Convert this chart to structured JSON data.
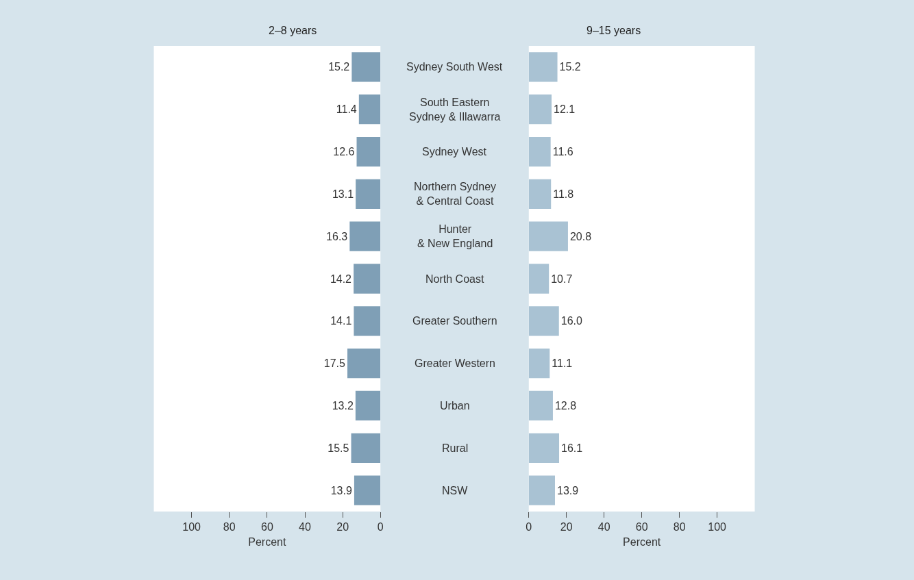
{
  "chart_data": [
    {
      "type": "bar",
      "orientation": "horizontal",
      "title": "2–8 years",
      "xlabel": "Percent",
      "categories": [
        "Sydney South West",
        "South Eastern Sydney & Illawarra",
        "Sydney West",
        "Northern Sydney & Central Coast",
        "Hunter & New England",
        "North Coast",
        "Greater Southern",
        "Greater Western",
        "Urban",
        "Rural",
        "NSW"
      ],
      "values": [
        15.2,
        11.4,
        12.6,
        13.1,
        16.3,
        14.2,
        14.1,
        17.5,
        13.2,
        15.5,
        13.9
      ],
      "value_labels": [
        "15.2",
        "11.4",
        "12.6",
        "13.1",
        "16.3",
        "14.2",
        "14.1",
        "17.5",
        "13.2",
        "15.5",
        "13.9"
      ],
      "color": "#7f9fb6",
      "xlim": [
        120,
        0
      ],
      "xticks": [
        100,
        80,
        60,
        40,
        20,
        0
      ],
      "legend": false
    },
    {
      "type": "bar",
      "orientation": "horizontal",
      "title": "9–15 years",
      "xlabel": "Percent",
      "categories": [
        "Sydney South West",
        "South Eastern Sydney & Illawarra",
        "Sydney West",
        "Northern Sydney & Central Coast",
        "Hunter & New England",
        "North Coast",
        "Greater Southern",
        "Greater Western",
        "Urban",
        "Rural",
        "NSW"
      ],
      "values": [
        15.2,
        12.1,
        11.6,
        11.8,
        20.8,
        10.7,
        16.0,
        11.1,
        12.8,
        16.1,
        13.9
      ],
      "value_labels": [
        "15.2",
        "12.1",
        "11.6",
        "11.8",
        "20.8",
        "10.7",
        "16.0",
        "11.1",
        "12.8",
        "16.1",
        "13.9"
      ],
      "color": "#a9c2d3",
      "xlim": [
        0,
        120
      ],
      "xticks": [
        0,
        20,
        40,
        60,
        80,
        100
      ],
      "legend": false,
      "tick_labels": "x"
    }
  ]
}
